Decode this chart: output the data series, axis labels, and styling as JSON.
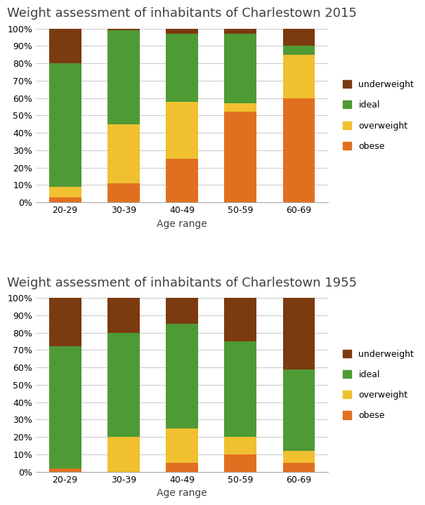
{
  "title_2015": "Weight assessment of inhabitants of Charlestown 2015",
  "title_1955": "Weight assessment of inhabitants of Charlestown 1955",
  "xlabel": "Age range",
  "categories": [
    "20-29",
    "30-39",
    "40-49",
    "50-59",
    "60-69"
  ],
  "colors": {
    "obese": "#E07020",
    "overweight": "#F0C030",
    "ideal": "#4E9A35",
    "underweight": "#7B3A10"
  },
  "data_2015": {
    "obese": [
      3,
      11,
      25,
      52,
      60
    ],
    "overweight": [
      6,
      34,
      33,
      5,
      25
    ],
    "ideal": [
      71,
      54,
      39,
      40,
      5
    ],
    "underweight": [
      20,
      1,
      3,
      3,
      10
    ]
  },
  "data_1955": {
    "obese": [
      2,
      0,
      5,
      10,
      5
    ],
    "overweight": [
      0,
      20,
      20,
      10,
      7
    ],
    "ideal": [
      70,
      60,
      60,
      55,
      47
    ],
    "underweight": [
      28,
      20,
      15,
      25,
      41
    ]
  },
  "yticks": [
    0,
    10,
    20,
    30,
    40,
    50,
    60,
    70,
    80,
    90,
    100
  ],
  "yticklabels": [
    "0%",
    "10%",
    "20%",
    "30%",
    "40%",
    "50%",
    "60%",
    "70%",
    "80%",
    "90%",
    "100%"
  ],
  "background_color": "#FFFFFF",
  "grid_color": "#CCCCCC",
  "title_fontsize": 13,
  "tick_fontsize": 9,
  "xlabel_fontsize": 10,
  "bar_width": 0.55,
  "legend_fontsize": 9
}
